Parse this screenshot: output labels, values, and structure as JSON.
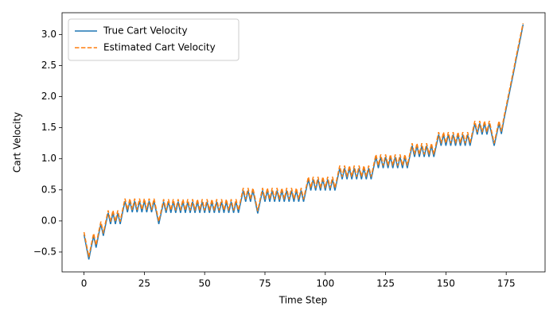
{
  "chart_data": {
    "type": "line",
    "x_label": "Time Step",
    "y_label": "Cart Velocity",
    "x": [
      0,
      1,
      2,
      3,
      4,
      5,
      6,
      7,
      8,
      9,
      10,
      11,
      12,
      13,
      14,
      15,
      16,
      17,
      18,
      19,
      20,
      21,
      22,
      23,
      24,
      25,
      26,
      27,
      28,
      29,
      30,
      31,
      32,
      33,
      34,
      35,
      36,
      37,
      38,
      39,
      40,
      41,
      42,
      43,
      44,
      45,
      46,
      47,
      48,
      49,
      50,
      51,
      52,
      53,
      54,
      55,
      56,
      57,
      58,
      59,
      60,
      61,
      62,
      63,
      64,
      65,
      66,
      67,
      68,
      69,
      70,
      71,
      72,
      73,
      74,
      75,
      76,
      77,
      78,
      79,
      80,
      81,
      82,
      83,
      84,
      85,
      86,
      87,
      88,
      89,
      90,
      91,
      92,
      93,
      94,
      95,
      96,
      97,
      98,
      99,
      100,
      101,
      102,
      103,
      104,
      105,
      106,
      107,
      108,
      109,
      110,
      111,
      112,
      113,
      114,
      115,
      116,
      117,
      118,
      119,
      120,
      121,
      122,
      123,
      124,
      125,
      126,
      127,
      128,
      129,
      130,
      131,
      132,
      133,
      134,
      135,
      136,
      137,
      138,
      139,
      140,
      141,
      142,
      143,
      144,
      145,
      146,
      147,
      148,
      149,
      150,
      151,
      152,
      153,
      154,
      155,
      156,
      157,
      158,
      159,
      160,
      161,
      162,
      163,
      164,
      165,
      166,
      167,
      168,
      169,
      170,
      171,
      172,
      173,
      174,
      175,
      176,
      177,
      178,
      179,
      180,
      181,
      182
    ],
    "series": [
      {
        "name": "True Cart Velocity",
        "color": "#1f77b4",
        "linestyle": "solid",
        "values": [
          -0.22,
          -0.42,
          -0.62,
          -0.42,
          -0.24,
          -0.43,
          -0.23,
          -0.05,
          -0.24,
          -0.05,
          0.13,
          -0.05,
          0.13,
          -0.05,
          0.13,
          -0.05,
          0.14,
          0.32,
          0.14,
          0.32,
          0.14,
          0.32,
          0.14,
          0.32,
          0.14,
          0.32,
          0.14,
          0.32,
          0.14,
          0.32,
          0.14,
          -0.05,
          0.13,
          0.31,
          0.13,
          0.31,
          0.13,
          0.31,
          0.13,
          0.31,
          0.13,
          0.31,
          0.13,
          0.31,
          0.13,
          0.31,
          0.13,
          0.31,
          0.13,
          0.31,
          0.13,
          0.31,
          0.13,
          0.31,
          0.13,
          0.31,
          0.13,
          0.31,
          0.13,
          0.31,
          0.13,
          0.31,
          0.13,
          0.31,
          0.13,
          0.31,
          0.49,
          0.31,
          0.49,
          0.31,
          0.49,
          0.31,
          0.12,
          0.31,
          0.49,
          0.31,
          0.49,
          0.31,
          0.49,
          0.31,
          0.49,
          0.31,
          0.49,
          0.31,
          0.49,
          0.31,
          0.49,
          0.31,
          0.49,
          0.31,
          0.49,
          0.31,
          0.49,
          0.67,
          0.49,
          0.67,
          0.49,
          0.67,
          0.49,
          0.67,
          0.49,
          0.67,
          0.49,
          0.67,
          0.49,
          0.67,
          0.85,
          0.67,
          0.85,
          0.67,
          0.85,
          0.67,
          0.85,
          0.67,
          0.85,
          0.67,
          0.85,
          0.67,
          0.85,
          0.67,
          0.85,
          1.03,
          0.85,
          1.03,
          0.85,
          1.03,
          0.85,
          1.03,
          0.85,
          1.03,
          0.85,
          1.03,
          0.85,
          1.03,
          0.85,
          1.03,
          1.21,
          1.03,
          1.21,
          1.03,
          1.21,
          1.03,
          1.21,
          1.03,
          1.21,
          1.03,
          1.21,
          1.39,
          1.21,
          1.39,
          1.21,
          1.39,
          1.21,
          1.39,
          1.21,
          1.39,
          1.21,
          1.39,
          1.21,
          1.39,
          1.21,
          1.39,
          1.57,
          1.39,
          1.57,
          1.39,
          1.57,
          1.39,
          1.57,
          1.39,
          1.21,
          1.39,
          1.57,
          1.4,
          1.62,
          1.81,
          2.0,
          2.19,
          2.38,
          2.58,
          2.77,
          2.96,
          3.16
        ]
      },
      {
        "name": "Estimated Cart Velocity",
        "color": "#ff7f0e",
        "linestyle": "dashed",
        "values": [
          -0.18,
          -0.38,
          -0.58,
          -0.38,
          -0.2,
          -0.39,
          -0.19,
          -0.01,
          -0.2,
          -0.01,
          0.17,
          -0.01,
          0.17,
          -0.01,
          0.17,
          -0.01,
          0.18,
          0.36,
          0.18,
          0.36,
          0.18,
          0.36,
          0.18,
          0.36,
          0.18,
          0.36,
          0.18,
          0.36,
          0.18,
          0.36,
          0.18,
          -0.01,
          0.17,
          0.35,
          0.17,
          0.35,
          0.17,
          0.35,
          0.17,
          0.35,
          0.17,
          0.35,
          0.17,
          0.35,
          0.17,
          0.35,
          0.17,
          0.35,
          0.17,
          0.35,
          0.17,
          0.35,
          0.17,
          0.35,
          0.17,
          0.35,
          0.17,
          0.35,
          0.17,
          0.35,
          0.17,
          0.35,
          0.17,
          0.35,
          0.17,
          0.35,
          0.53,
          0.35,
          0.53,
          0.35,
          0.53,
          0.35,
          0.16,
          0.35,
          0.53,
          0.35,
          0.53,
          0.35,
          0.53,
          0.35,
          0.53,
          0.35,
          0.53,
          0.35,
          0.53,
          0.35,
          0.53,
          0.35,
          0.53,
          0.35,
          0.53,
          0.35,
          0.53,
          0.71,
          0.53,
          0.71,
          0.53,
          0.71,
          0.53,
          0.71,
          0.53,
          0.71,
          0.53,
          0.71,
          0.53,
          0.71,
          0.89,
          0.71,
          0.89,
          0.71,
          0.89,
          0.71,
          0.89,
          0.71,
          0.89,
          0.71,
          0.89,
          0.71,
          0.89,
          0.71,
          0.89,
          1.07,
          0.89,
          1.07,
          0.89,
          1.07,
          0.89,
          1.07,
          0.89,
          1.07,
          0.89,
          1.07,
          0.89,
          1.07,
          0.89,
          1.07,
          1.25,
          1.07,
          1.25,
          1.07,
          1.25,
          1.07,
          1.25,
          1.07,
          1.25,
          1.07,
          1.25,
          1.43,
          1.25,
          1.43,
          1.25,
          1.43,
          1.25,
          1.43,
          1.25,
          1.43,
          1.25,
          1.43,
          1.25,
          1.43,
          1.25,
          1.43,
          1.61,
          1.43,
          1.61,
          1.43,
          1.61,
          1.43,
          1.61,
          1.43,
          1.25,
          1.43,
          1.61,
          1.44,
          1.66,
          1.85,
          2.04,
          2.23,
          2.42,
          2.62,
          2.81,
          3.0,
          3.18
        ]
      }
    ],
    "xlim": [
      -9.1,
      191.1
    ],
    "xticks": [
      0,
      25,
      50,
      75,
      100,
      125,
      150,
      175
    ],
    "ylim": [
      -0.82,
      3.35
    ],
    "yticks": [
      {
        "value": -0.5,
        "label": "−0.5"
      },
      {
        "value": 0,
        "label": "0.0"
      },
      0.5,
      {
        "value": 1,
        "label": "1.0"
      },
      1.5,
      {
        "value": 2,
        "label": "2.0"
      },
      2.5,
      {
        "value": 3,
        "label": "3.0"
      }
    ],
    "grid": false,
    "legend": "upper left"
  }
}
